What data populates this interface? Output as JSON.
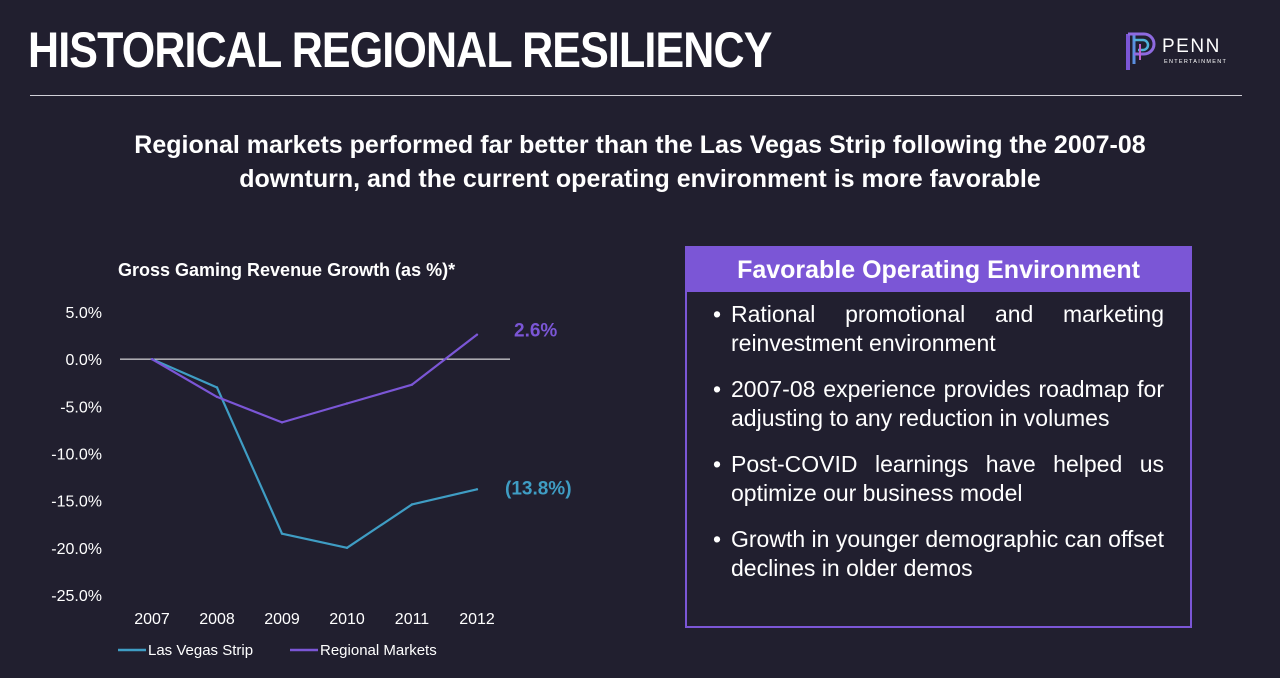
{
  "header": {
    "title": "HISTORICAL REGIONAL RESILIENCY",
    "logo_name": "PENN",
    "logo_sub": "ENTERTAINMENT"
  },
  "subtitle": {
    "line1": "Regional markets performed far better than the Las Vegas Strip following the 2007-08",
    "line2": "downturn, and the current operating environment is more favorable"
  },
  "colors": {
    "background": "#211f2f",
    "las_vegas": "#3f9dc4",
    "regional": "#7b56d6",
    "accent": "#7b56d6"
  },
  "chart_data": {
    "type": "line",
    "title": "Gross Gaming Revenue Growth (as %)*",
    "categories": [
      "2007",
      "2008",
      "2009",
      "2010",
      "2011",
      "2012"
    ],
    "series": [
      {
        "name": "Las Vegas Strip",
        "values": [
          0.0,
          -3.0,
          -18.5,
          -20.0,
          -15.4,
          -13.8
        ],
        "end_label": "(13.8%)"
      },
      {
        "name": "Regional Markets",
        "values": [
          0.0,
          -4.0,
          -6.7,
          -4.7,
          -2.7,
          2.6
        ],
        "end_label": "2.6%"
      }
    ],
    "y_ticks": [
      "5.0%",
      "0.0%",
      "-5.0%",
      "-10.0%",
      "-15.0%",
      "-20.0%",
      "-25.0%"
    ],
    "ylim": [
      -25,
      5
    ],
    "xlabel": "",
    "ylabel": "",
    "legend": "bottom"
  },
  "panel": {
    "title": "Favorable Operating Environment",
    "bullets": [
      "Rational promotional and marketing reinvestment environment",
      "2007-08 experience provides roadmap for adjusting to any reduction in volumes",
      "Post-COVID learnings have helped us optimize our business model",
      "Growth in younger demographic can offset declines in older demos"
    ]
  }
}
